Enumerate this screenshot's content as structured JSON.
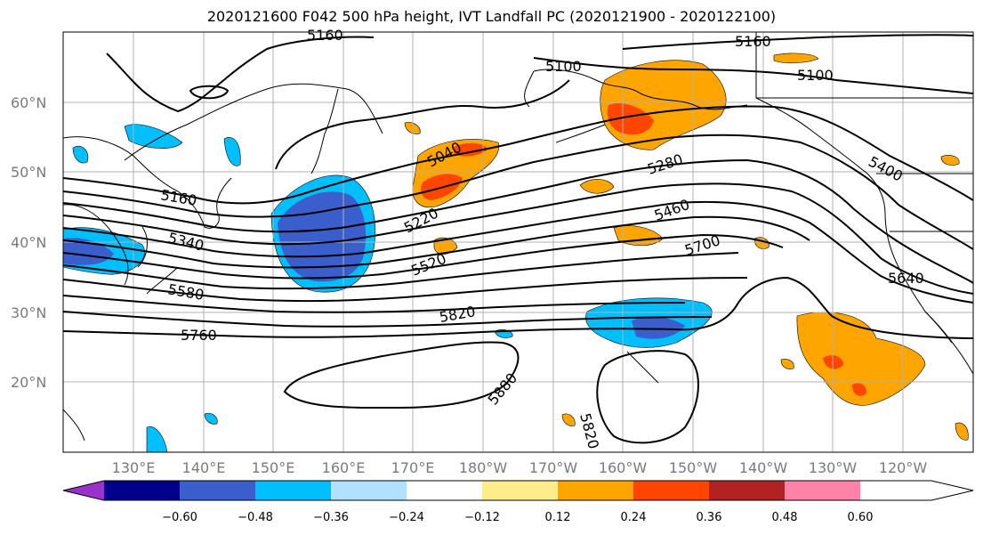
{
  "title": "2020121600 F042 500 hPa height, IVT Landfall PC (2020121900 - 2020122100)",
  "colors": {
    "contour": "#000000",
    "grid": "#b0b0b0",
    "coast": "#000000"
  },
  "lon_ticks": [
    "130°E",
    "140°E",
    "150°E",
    "160°E",
    "170°E",
    "180°W",
    "170°W",
    "160°W",
    "150°W",
    "140°W",
    "130°W",
    "120°W"
  ],
  "lat_ticks": [
    "60°N",
    "50°N",
    "40°N",
    "30°N",
    "20°N"
  ],
  "contour_labels": [
    "5160",
    "5160",
    "5100",
    "5100",
    "5040",
    "5160",
    "5280",
    "5400",
    "5220",
    "5340",
    "5460",
    "5520",
    "5580",
    "5700",
    "5640",
    "5820",
    "5760",
    "5880",
    "5820"
  ],
  "colorbar": {
    "ticks": [
      "−0.60",
      "−0.48",
      "−0.36",
      "−0.24",
      "−0.12",
      "0.12",
      "0.24",
      "0.36",
      "0.48",
      "0.60"
    ],
    "colors": [
      "#9932cc",
      "#00008b",
      "#3a5fcd",
      "#00bfff",
      "#b0e2ff",
      "#ffffff",
      "#ffec8b",
      "#ffa500",
      "#ff4500",
      "#b22222",
      "#ff83a8"
    ]
  }
}
